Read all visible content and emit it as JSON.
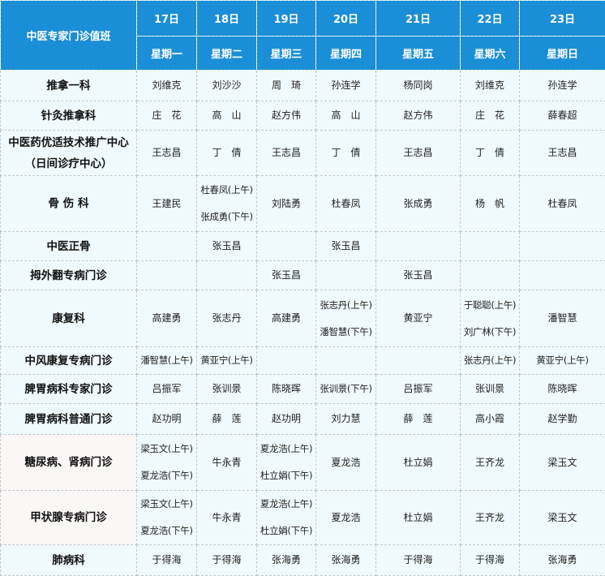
{
  "table": {
    "title": "中医专家门诊值班",
    "dates": [
      "17日",
      "18日",
      "19日",
      "20日",
      "21日",
      "22日",
      "23日"
    ],
    "weekdays": [
      "星期一",
      "星期二",
      "星期三",
      "星期四",
      "星期五",
      "星期六",
      "星期日"
    ],
    "rows": [
      {
        "label": [
          "推拿一科"
        ],
        "cells": [
          [
            "刘维克"
          ],
          [
            "刘沙沙"
          ],
          [
            "周　琦"
          ],
          [
            "孙连学"
          ],
          [
            "杨同岗"
          ],
          [
            "刘维克"
          ],
          [
            "孙连学"
          ]
        ]
      },
      {
        "label": [
          "针灸推拿科"
        ],
        "cells": [
          [
            "庄　花"
          ],
          [
            "高　山"
          ],
          [
            "赵方伟"
          ],
          [
            "高　山"
          ],
          [
            "赵方伟"
          ],
          [
            "庄　花"
          ],
          [
            "薛春超"
          ]
        ]
      },
      {
        "label": [
          "中医药优适技术推广中心",
          "（日间诊疗中心）"
        ],
        "cells": [
          [
            "王志昌"
          ],
          [
            "丁　倩"
          ],
          [
            "王志昌"
          ],
          [
            "丁　倩"
          ],
          [
            "王志昌"
          ],
          [
            "丁　倩"
          ],
          [
            "王志昌"
          ]
        ]
      },
      {
        "label": [
          "骨 伤 科"
        ],
        "cells": [
          [
            "王建民"
          ],
          [
            "杜春凤(上午)",
            "张成勇(下午)"
          ],
          [
            "刘陆勇"
          ],
          [
            "杜春凤"
          ],
          [
            "张成勇"
          ],
          [
            "杨　帆"
          ],
          [
            "杜春凤"
          ]
        ]
      },
      {
        "label": [
          "中医正骨"
        ],
        "cells": [
          [],
          [
            "张玉昌"
          ],
          [],
          [
            "张玉昌"
          ],
          [],
          [],
          []
        ]
      },
      {
        "label": [
          "拇外翻专病门诊"
        ],
        "cells": [
          [],
          [],
          [
            "张玉昌"
          ],
          [],
          [
            "张玉昌"
          ],
          [],
          []
        ]
      },
      {
        "label": [
          "康复科"
        ],
        "cells": [
          [
            "高建勇"
          ],
          [
            "张志丹"
          ],
          [
            "高建勇"
          ],
          [
            "张志丹(上午)",
            "潘智慧(下午)"
          ],
          [
            "黄亚宁"
          ],
          [
            "于聪聪(上午)",
            "刘广林(下午)"
          ],
          [
            "潘智慧"
          ]
        ]
      },
      {
        "label": [
          "中风康复专病门诊"
        ],
        "cells": [
          [
            "潘智慧(上午)"
          ],
          [
            "黄亚宁(上午)"
          ],
          [],
          [],
          [],
          [
            "张志丹(上午)"
          ],
          [
            "黄亚宁(上午)"
          ]
        ]
      },
      {
        "label": [
          "脾胃病科专家门诊"
        ],
        "cells": [
          [
            "吕振军"
          ],
          [
            "张训景"
          ],
          [
            "陈晓晖"
          ],
          [
            "张训景(下午)"
          ],
          [
            "吕振军"
          ],
          [
            "张训景"
          ],
          [
            "陈晓晖"
          ]
        ]
      },
      {
        "label": [
          "脾胃病科普通门诊"
        ],
        "cells": [
          [
            "赵功明"
          ],
          [
            "薛　莲"
          ],
          [
            "赵功明"
          ],
          [
            "刘力慧"
          ],
          [
            "薛　莲"
          ],
          [
            "高小霞"
          ],
          [
            "赵学勤"
          ]
        ]
      },
      {
        "label": [
          "糖尿病、肾病门诊"
        ],
        "cells": [
          [
            "梁玉文(上午)",
            "夏龙浩(下午)"
          ],
          [
            "牛永青"
          ],
          [
            "夏龙浩(上午)",
            "杜立娟(下午)"
          ],
          [
            "夏龙浩"
          ],
          [
            "杜立娟"
          ],
          [
            "王齐龙"
          ],
          [
            "梁玉文"
          ]
        ]
      },
      {
        "label": [
          "甲状腺专病门诊"
        ],
        "cells": [
          [
            "梁玉文(上午)",
            "夏龙浩(下午)"
          ],
          [
            "牛永青"
          ],
          [
            "夏龙浩(上午)",
            "杜立娟(下午)"
          ],
          [
            "夏龙浩"
          ],
          [
            "杜立娟"
          ],
          [
            "王齐龙"
          ],
          [
            "梁玉文"
          ]
        ]
      },
      {
        "label": [
          "肺病科"
        ],
        "cells": [
          [
            "于得海"
          ],
          [
            "于得海"
          ],
          [
            "张海勇"
          ],
          [
            "张海勇"
          ],
          [
            "于得海"
          ],
          [
            "于得海"
          ],
          [
            "张海勇"
          ]
        ]
      }
    ]
  },
  "colors": {
    "header_bg": "#1a8ed6",
    "cell_bg": "#eefafd",
    "border": "#bfc7cc"
  }
}
